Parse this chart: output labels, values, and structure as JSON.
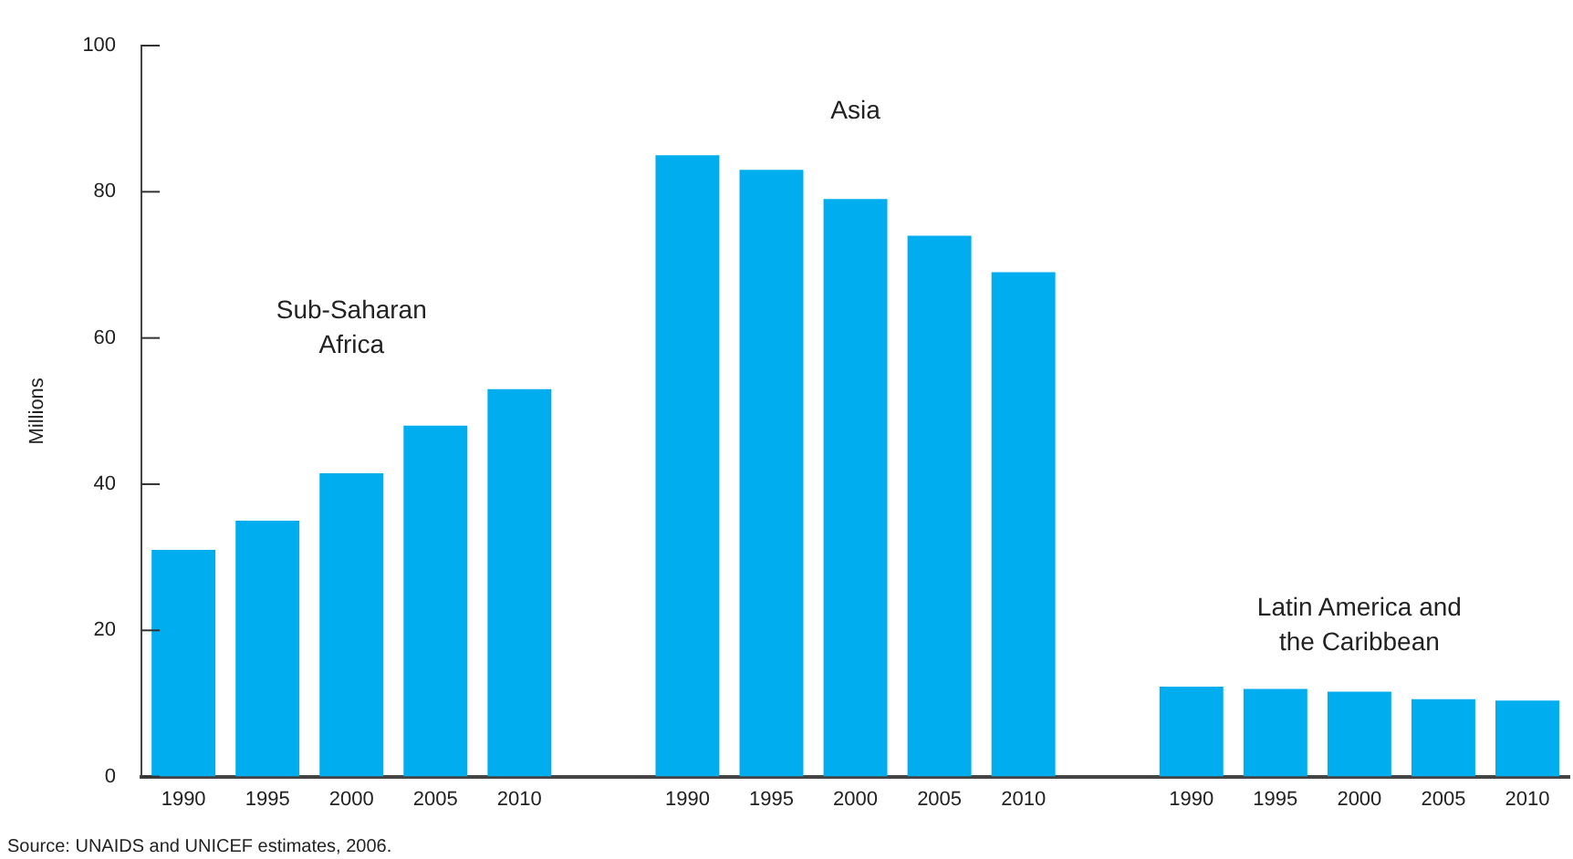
{
  "chart_data": {
    "type": "bar",
    "ylabel": "Millions",
    "categories": [
      "1990",
      "1995",
      "2000",
      "2005",
      "2010",
      null,
      "1990",
      "1995",
      "2000",
      "2005",
      "2010",
      null,
      "1990",
      "1995",
      "2000",
      "2005",
      "2010"
    ],
    "values": [
      31,
      35,
      41.5,
      48,
      53,
      null,
      85,
      83,
      79,
      74,
      69,
      null,
      12.3,
      12,
      11.6,
      10.6,
      10.4
    ],
    "color": "#00aeef",
    "ylim": [
      0,
      100
    ],
    "yticks": [
      0,
      20,
      40,
      60,
      80,
      100
    ],
    "grid": false,
    "legend": false,
    "annotations": [
      "Sub-Saharan\nAfrica",
      "Asia",
      "Latin America and\nthe Caribbean",
      "Source: UNAIDS and UNICEF estimates, 2006."
    ]
  }
}
